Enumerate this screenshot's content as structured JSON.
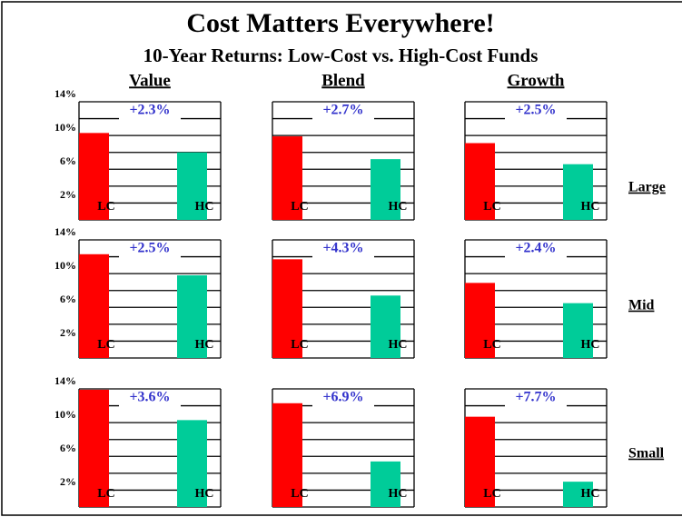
{
  "chart_data": {
    "type": "bar",
    "title": "Cost Matters Everywhere!",
    "subtitle": "10-Year Returns: Low-Cost vs. High-Cost Funds",
    "columns": [
      "Value",
      "Blend",
      "Growth"
    ],
    "rows": [
      "Large",
      "Mid",
      "Small"
    ],
    "categories": [
      "LC",
      "HC"
    ],
    "colors": [
      "#ff0000",
      "#00cc99"
    ],
    "annotation_color": "#3333cc",
    "ylim": [
      0,
      14
    ],
    "yticks": [
      {
        "value": 2,
        "label": "2%"
      },
      {
        "value": 6,
        "label": "6%"
      },
      {
        "value": 10,
        "label": "10%"
      },
      {
        "value": 14,
        "label": "14%"
      }
    ],
    "minor_yticks": [
      4,
      8,
      12
    ],
    "grid": true,
    "panels": [
      {
        "values": [
          10.3,
          8.0
        ],
        "annotation": "+2.3%"
      },
      {
        "values": [
          9.9,
          7.2
        ],
        "annotation": "+2.7%"
      },
      {
        "values": [
          9.1,
          6.6
        ],
        "annotation": "+2.5%"
      },
      {
        "values": [
          12.3,
          9.8
        ],
        "annotation": "+2.5%"
      },
      {
        "values": [
          11.7,
          7.4
        ],
        "annotation": "+4.3%"
      },
      {
        "values": [
          8.9,
          6.5
        ],
        "annotation": "+2.4%"
      },
      {
        "values": [
          13.9,
          10.3
        ],
        "annotation": "+3.6%"
      },
      {
        "values": [
          12.3,
          5.4
        ],
        "annotation": "+6.9%"
      },
      {
        "values": [
          10.7,
          3.0
        ],
        "annotation": "+7.7%"
      }
    ]
  }
}
